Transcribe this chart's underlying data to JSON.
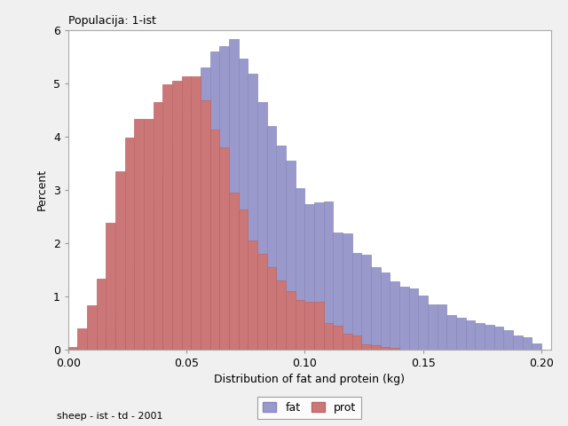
{
  "title": "Populacija: 1-ist",
  "xlabel": "Distribution of fat and protein (kg)",
  "ylabel": "Percent",
  "footer": "sheep - ist - td - 2001",
  "xlim": [
    0.0,
    0.204
  ],
  "ylim": [
    0.0,
    6.0
  ],
  "xticks": [
    0.0,
    0.05,
    0.1,
    0.15,
    0.2
  ],
  "yticks": [
    0,
    1,
    2,
    3,
    4,
    5,
    6
  ],
  "fat_color": "#9999cc",
  "prot_color": "#cc7777",
  "fat_edge": "#8888bb",
  "prot_edge": "#bb6666",
  "bin_width": 0.004,
  "fat_values": [
    0.02,
    0.08,
    0.13,
    0.24,
    0.38,
    0.7,
    1.1,
    1.6,
    2.1,
    2.7,
    3.3,
    3.9,
    4.35,
    4.78,
    5.3,
    5.6,
    5.7,
    5.82,
    5.46,
    5.18,
    4.65,
    4.2,
    3.83,
    3.55,
    3.02,
    2.73,
    2.76,
    2.77,
    2.19,
    2.17,
    1.81,
    1.77,
    1.55,
    1.44,
    1.28,
    1.18,
    1.15,
    1.01,
    0.84,
    0.85,
    0.64,
    0.6,
    0.55,
    0.5,
    0.46,
    0.42,
    0.36,
    0.26,
    0.22,
    0.11
  ],
  "prot_values": [
    0.04,
    0.4,
    0.82,
    1.32,
    2.38,
    3.34,
    3.98,
    4.32,
    4.33,
    4.65,
    4.97,
    5.05,
    5.12,
    5.12,
    4.68,
    4.12,
    3.79,
    2.95,
    2.62,
    2.05,
    1.8,
    1.55,
    1.3,
    1.1,
    0.92,
    0.9,
    0.89,
    0.49,
    0.44,
    0.29,
    0.26,
    0.1,
    0.08,
    0.05,
    0.03,
    0.0,
    0.0,
    0.0,
    0.0,
    0.0,
    0.0,
    0.0,
    0.0,
    0.0,
    0.0,
    0.0,
    0.0,
    0.0,
    0.0,
    0.0
  ],
  "background_color": "#f0f0f0",
  "plot_bg": "#ffffff",
  "legend_fat_label": "fat",
  "legend_prot_label": "prot"
}
